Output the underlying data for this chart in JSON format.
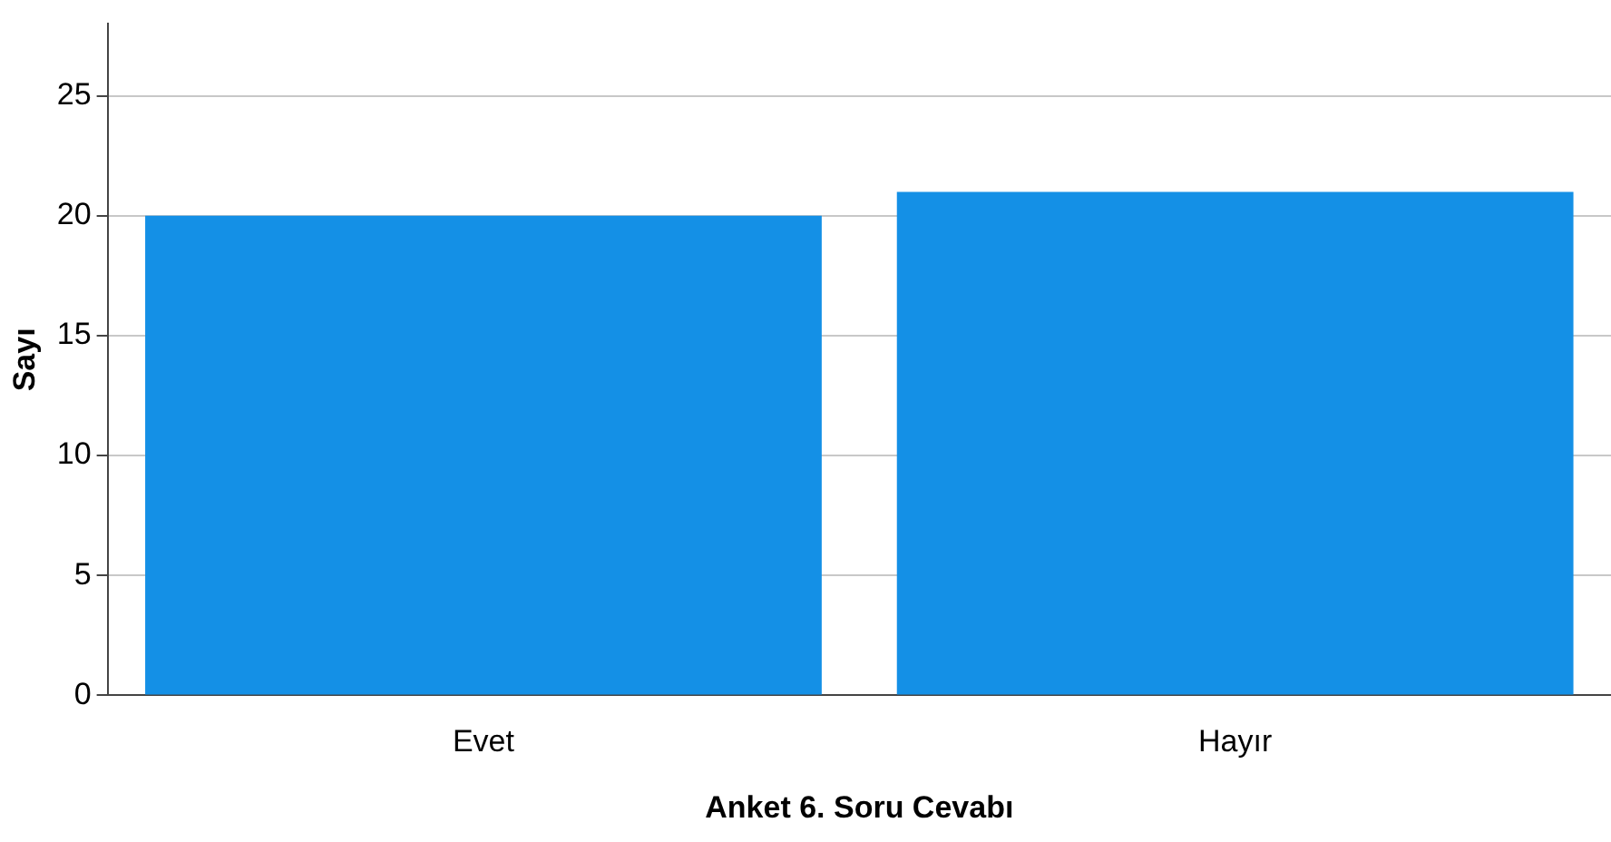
{
  "chart_data": {
    "type": "bar",
    "xlabel": "Anket 6. Soru Cevabı",
    "ylabel": "Sayı",
    "categories": [
      "Evet",
      "Hayır"
    ],
    "values": [
      20,
      21
    ],
    "color": "#1490e6",
    "ylim": [
      0,
      28
    ],
    "yticks": [
      0,
      5,
      10,
      15,
      20,
      25
    ],
    "grid": "y",
    "legend": false
  }
}
